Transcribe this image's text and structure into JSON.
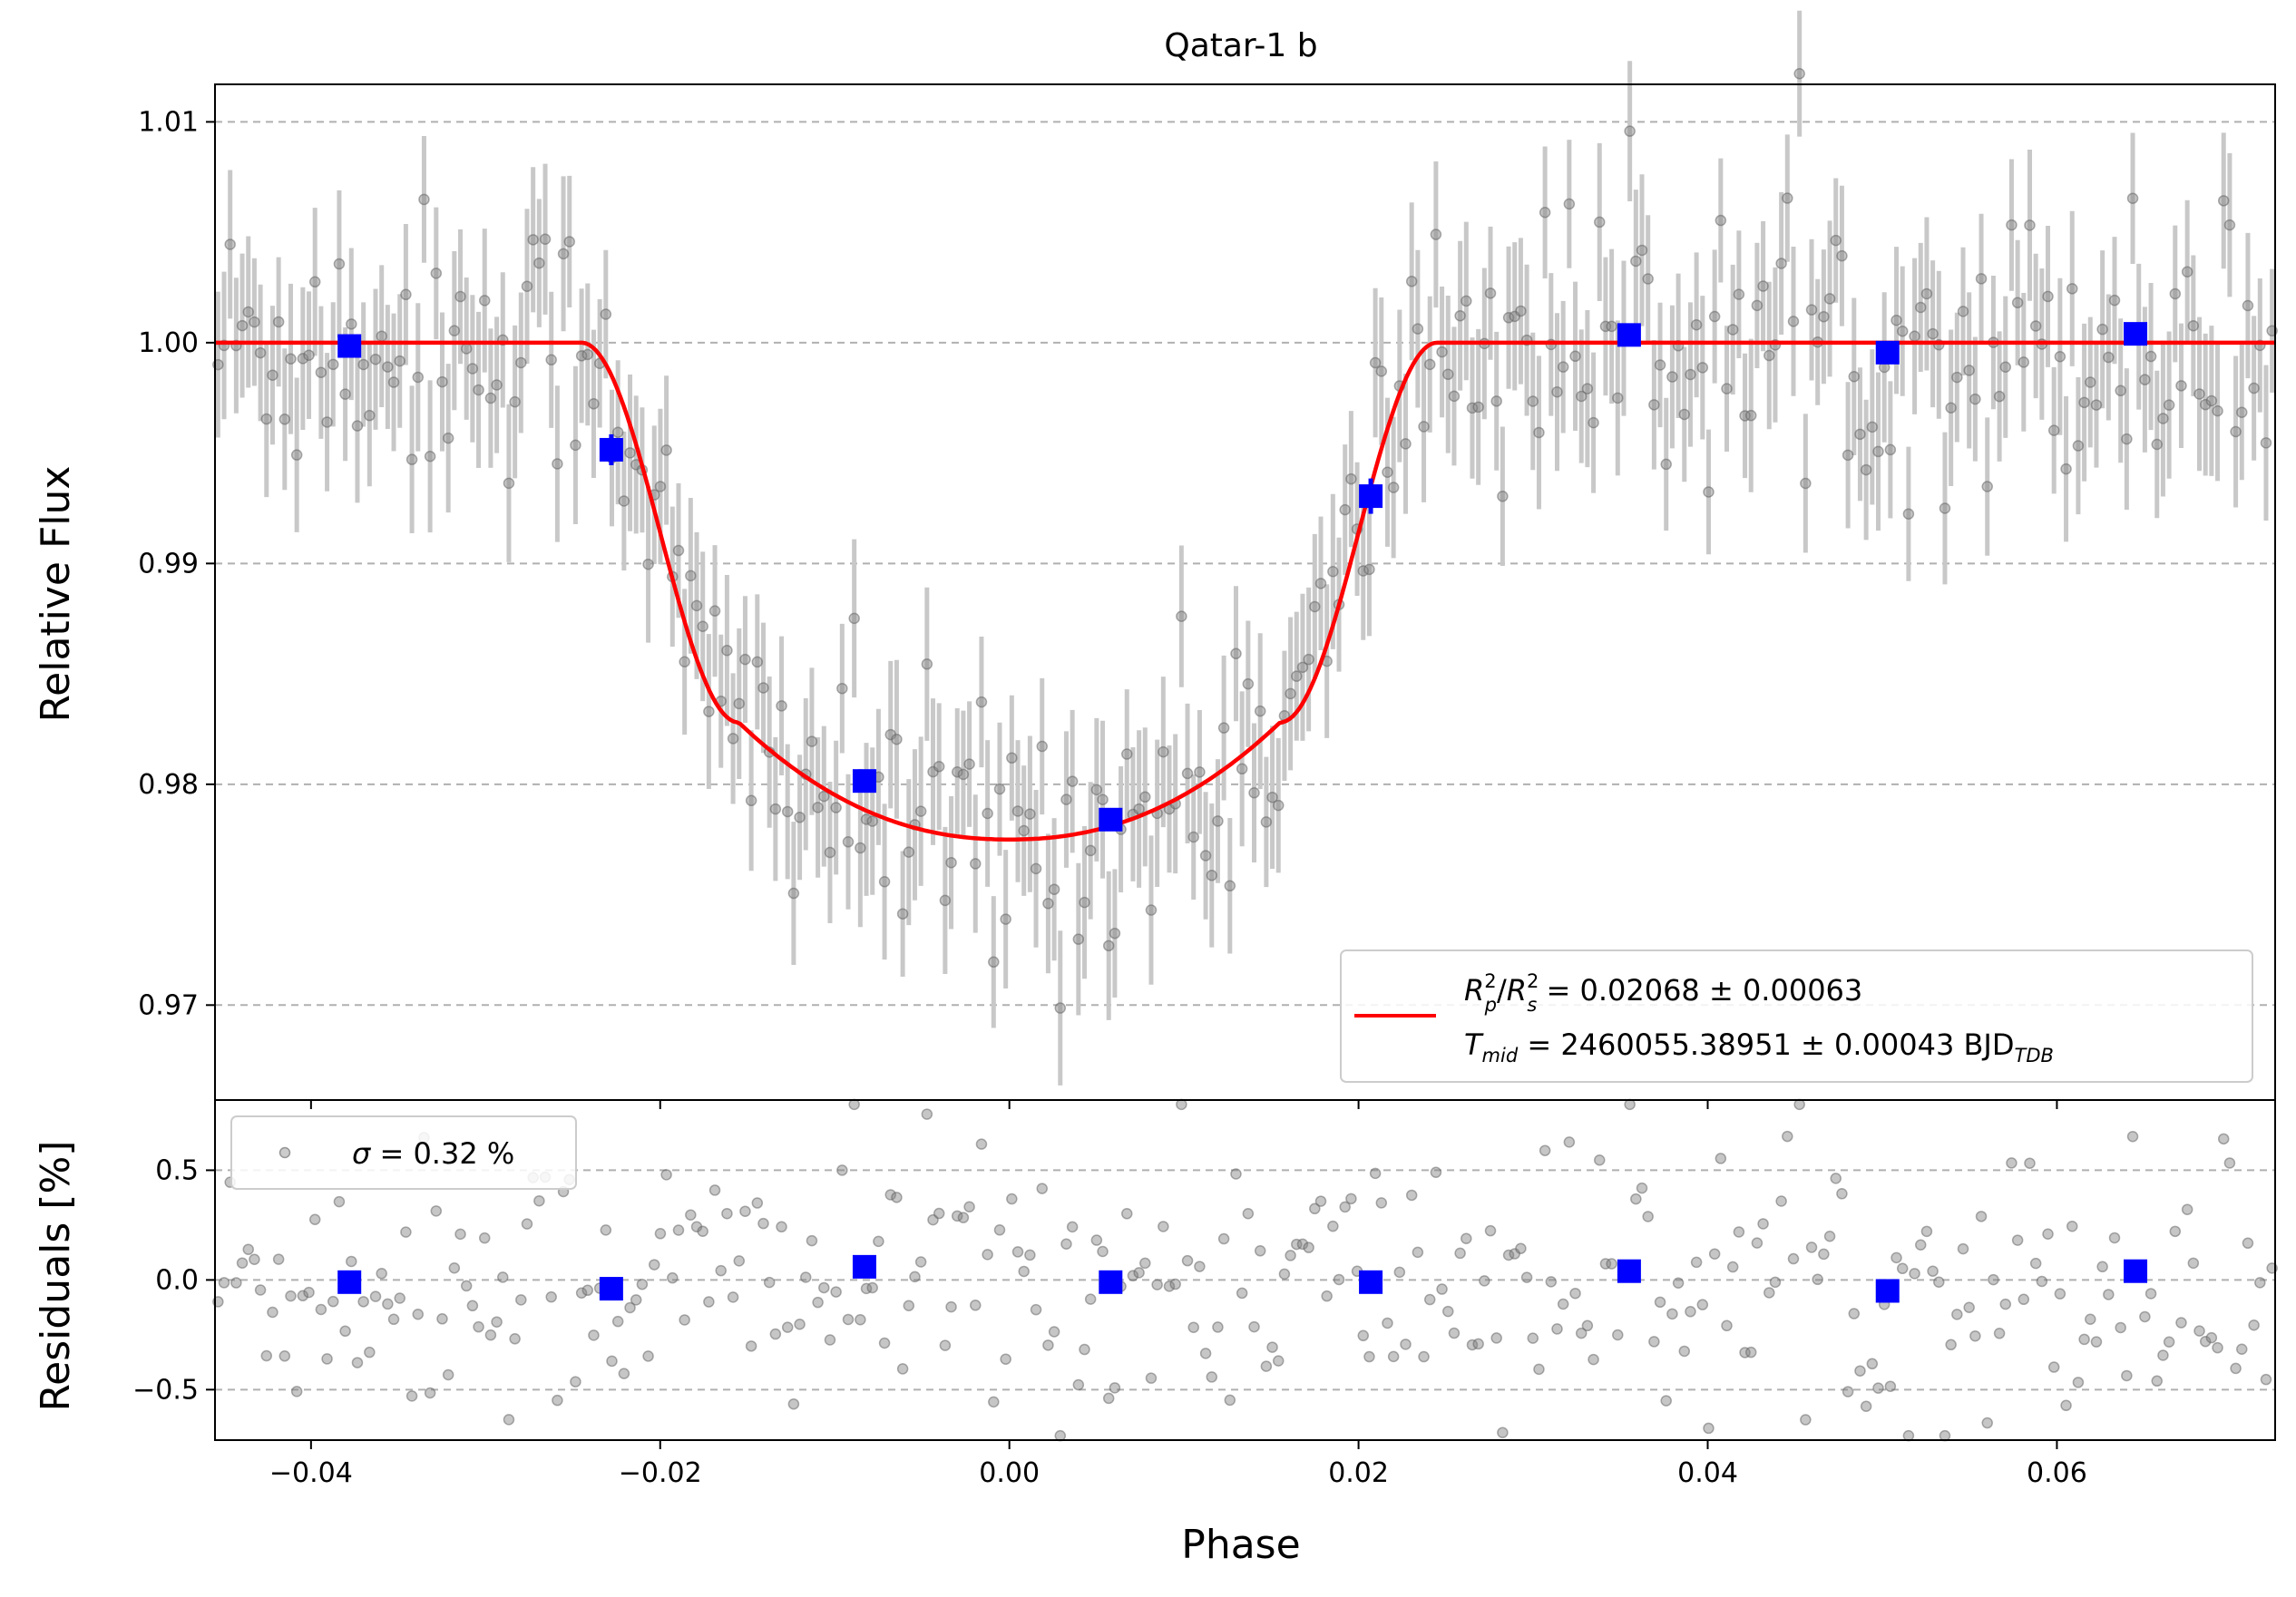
{
  "chart_data": [
    {
      "panel": "top",
      "type": "scatter",
      "title": "Qatar-1 b",
      "xlabel": "",
      "ylabel": "Relative Flux",
      "xlim": [
        -0.0455,
        0.0725
      ],
      "ylim": [
        0.9657,
        1.0117
      ],
      "yticks": [
        0.97,
        0.98,
        0.99,
        1.0,
        1.01
      ],
      "ytick_labels": [
        "0.97",
        "0.98",
        "0.99",
        "1.00",
        "1.01"
      ],
      "grid": "horizontal dashed",
      "legend_position": "lower-right",
      "legend": {
        "line1": {
          "R": "R",
          "p_sup": "2",
          "p_sub": "p",
          "slash": "/",
          "s": "R",
          "s_sup": "2",
          "s_sub": "s",
          "value": " = 0.02068 ± 0.00063"
        },
        "line2": {
          "T": "T",
          "T_sub": "mid",
          "value": " = 2460055.38951 ± 0.00043 BJD",
          "unit_sub": "TDB"
        }
      },
      "model": {
        "name": "transit model",
        "color": "#ff0000",
        "baseline": 1.0,
        "depth": 0.02068,
        "min_flux": 0.9775,
        "t_mid": 0.0,
        "contact_t1": -0.0245,
        "contact_t2": -0.0155,
        "contact_t3": 0.0155,
        "contact_t4": 0.0245
      },
      "raw_points": {
        "color": "#808080",
        "errorbar_color": "#c8c8c8",
        "description_count": 340,
        "noise_sigma": 0.0032
      },
      "binned": {
        "color": "#0000ff",
        "x": [
          -0.0378,
          -0.0228,
          -0.0083,
          0.0058,
          0.0207,
          0.0355,
          0.0503,
          0.0645
        ],
        "y": [
          0.99985,
          0.99515,
          0.98015,
          0.9784,
          0.99305,
          1.00035,
          0.99955,
          1.0004
        ],
        "yerr": [
          0.0002,
          0.0007,
          0.0003,
          0.0003,
          0.0008,
          0.0003,
          0.0003,
          0.0003
        ]
      }
    },
    {
      "panel": "bottom",
      "type": "scatter",
      "xlabel": "Phase",
      "ylabel": "Residuals [%]",
      "xlim": [
        -0.0455,
        0.0725
      ],
      "ylim": [
        -0.73,
        0.82
      ],
      "xticks": [
        -0.04,
        -0.02,
        0.0,
        0.02,
        0.04,
        0.06
      ],
      "xtick_labels": [
        "−0.04",
        "−0.02",
        "0.00",
        "0.02",
        "0.04",
        "0.06"
      ],
      "yticks": [
        -0.5,
        0.0,
        0.5
      ],
      "ytick_labels": [
        "−0.5",
        "0.0",
        "0.5"
      ],
      "grid": "horizontal dashed",
      "legend_position": "upper-left",
      "legend": {
        "sigma": "σ",
        "value": " = 0.32 %"
      },
      "binned": {
        "color": "#0000ff",
        "x": [
          -0.0378,
          -0.0228,
          -0.0083,
          0.0058,
          0.0207,
          0.0355,
          0.0503,
          0.0645
        ],
        "y": [
          -0.01,
          -0.04,
          0.06,
          -0.01,
          -0.01,
          0.04,
          -0.05,
          0.04
        ]
      },
      "raw_points": {
        "color": "#808080",
        "noise_sigma": 0.32
      }
    }
  ]
}
